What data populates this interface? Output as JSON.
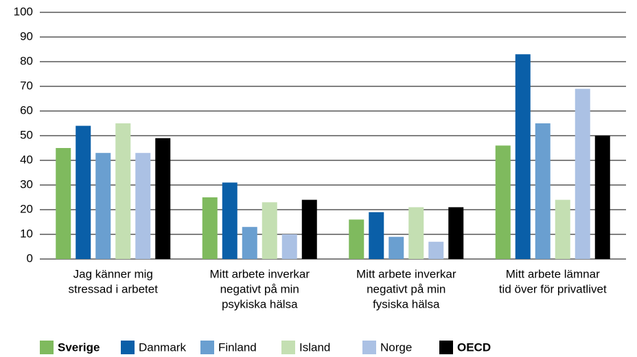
{
  "chart_data": {
    "type": "bar",
    "categories": [
      [
        "Jag känner mig",
        "stressad i arbetet"
      ],
      [
        "Mitt arbete inverkar",
        "negativt på min",
        "psykiska hälsa"
      ],
      [
        "Mitt arbete inverkar",
        "negativt på min",
        "fysiska hälsa"
      ],
      [
        "Mitt arbete lämnar",
        "tid över för privatlivet"
      ]
    ],
    "series": [
      {
        "name": "Sverige",
        "color": "#7fba5e",
        "bold": true,
        "values": [
          45,
          25,
          16,
          46
        ]
      },
      {
        "name": "Danmark",
        "color": "#0a5fa8",
        "bold": false,
        "values": [
          54,
          31,
          19,
          83
        ]
      },
      {
        "name": "Finland",
        "color": "#6a9fd0",
        "bold": false,
        "values": [
          43,
          13,
          9,
          55
        ]
      },
      {
        "name": "Island",
        "color": "#c4dfb2",
        "bold": false,
        "values": [
          55,
          23,
          21,
          24
        ]
      },
      {
        "name": "Norge",
        "color": "#abc1e4",
        "bold": false,
        "values": [
          43,
          10,
          7,
          69
        ]
      },
      {
        "name": "OECD",
        "color": "#000000",
        "bold": true,
        "values": [
          49,
          24,
          21,
          50
        ]
      }
    ],
    "ylim": [
      0,
      100
    ],
    "yticks": [
      0,
      10,
      20,
      30,
      40,
      50,
      60,
      70,
      80,
      90,
      100
    ],
    "grid": true,
    "legend": "bottom"
  }
}
